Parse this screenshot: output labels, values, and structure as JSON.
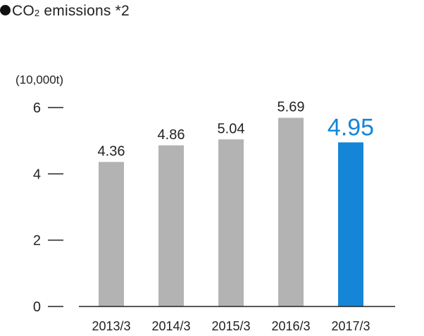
{
  "title": {
    "prefix": "CO",
    "subscript": "2",
    "suffix": " emissions *2"
  },
  "chart_data": {
    "type": "bar",
    "title": "CO2 emissions *2",
    "ylabel": "(10,000t)",
    "xlabel": "",
    "categories": [
      "2013/3",
      "2014/3",
      "2015/3",
      "2016/3",
      "2017/3"
    ],
    "values": [
      4.36,
      4.86,
      5.04,
      5.69,
      4.95
    ],
    "value_labels": [
      "4.36",
      "4.86",
      "5.04",
      "5.69",
      "4.95"
    ],
    "ylim": [
      0,
      6
    ],
    "yticks": [
      0,
      2,
      4,
      6
    ],
    "grid": false,
    "colors": {
      "default_bar": "#b3b3b3",
      "highlight_bar": "#1585d8",
      "highlight_label": "#1585d8",
      "text": "#222222"
    },
    "highlight_index": 4
  }
}
